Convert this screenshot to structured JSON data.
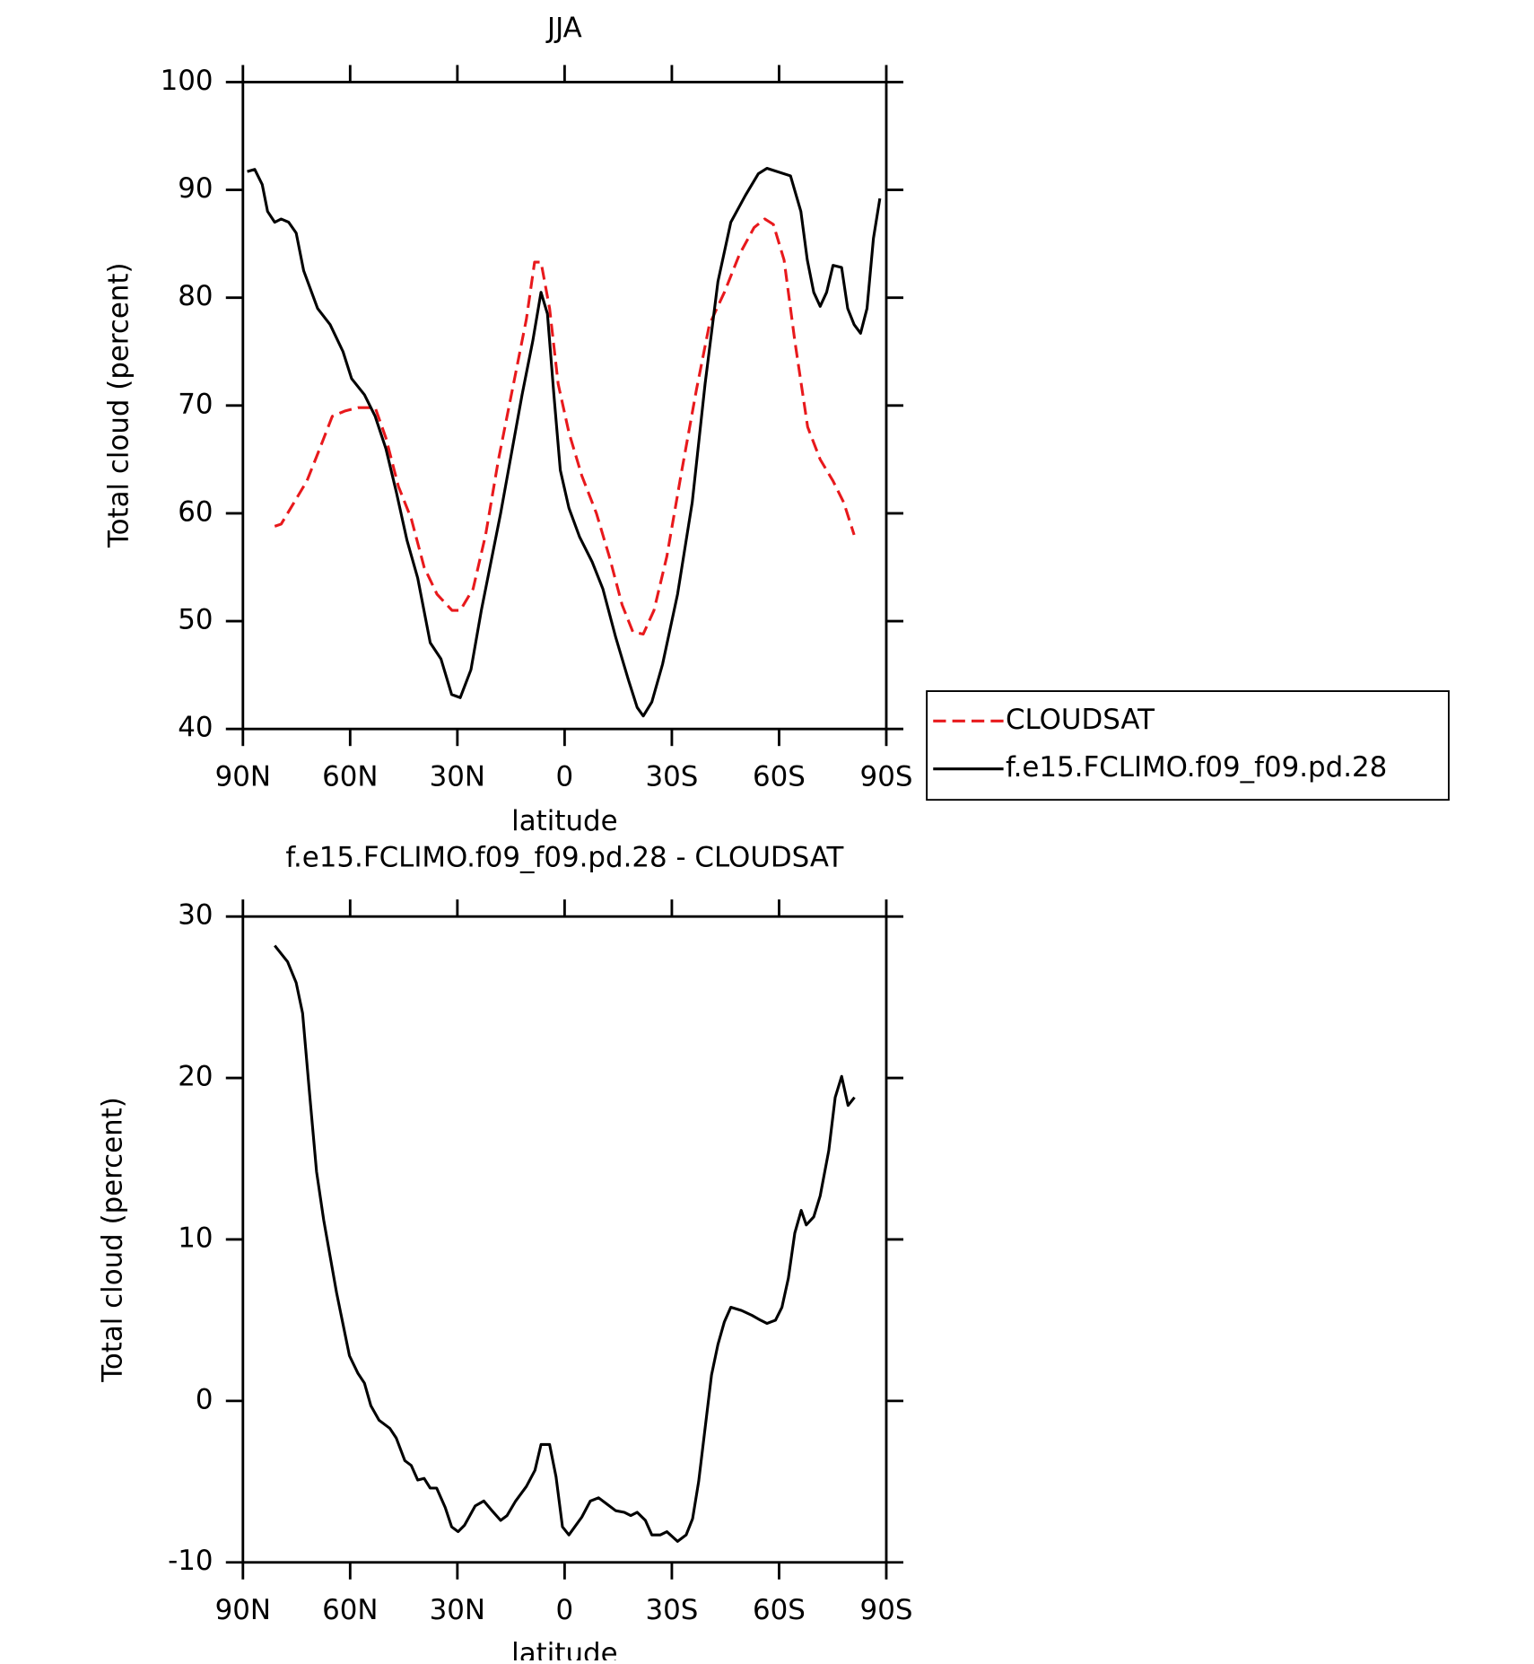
{
  "chart_data": [
    {
      "type": "line",
      "title": "JJA",
      "xlabel": "latitude",
      "ylabel": "Total cloud (percent)",
      "xlim": [
        90,
        -90
      ],
      "xticks": [
        {
          "value": 90,
          "label": "90N"
        },
        {
          "value": 60,
          "label": "60N"
        },
        {
          "value": 30,
          "label": "30N"
        },
        0,
        {
          "value": -30,
          "label": "30S"
        },
        {
          "value": -60,
          "label": "60S"
        },
        {
          "value": -90,
          "label": "90S"
        }
      ],
      "ylim": [
        40,
        100
      ],
      "yticks": [
        40,
        50,
        60,
        70,
        80,
        90,
        100
      ],
      "legend": "right",
      "series": [
        {
          "name": "CLOUDSAT",
          "color": "#e8191c",
          "linestyle": "dashed",
          "x": [
            81.1,
            79.3,
            75.7,
            72.1,
            68.5,
            65,
            61.4,
            57.8,
            53,
            50,
            46.5,
            42.9,
            39.3,
            35.7,
            31.5,
            29.2,
            25.6,
            22.1,
            18.5,
            14.3,
            10.7,
            8.4,
            6.6,
            4.2,
            1.8,
            -1.2,
            -4.8,
            -8.9,
            -12.5,
            -16.1,
            -19.1,
            -22,
            -25,
            -28.6,
            -32.8,
            -36.9,
            -40.5,
            -44.7,
            -48.9,
            -53,
            -56,
            -58.4,
            -61.4,
            -64.4,
            -68,
            -71.5,
            -75.1,
            -78.1,
            -81
          ],
          "values": [
            58.8,
            59,
            61,
            63,
            66,
            69,
            69.5,
            69.8,
            69.8,
            67,
            62.5,
            59.5,
            55,
            52.5,
            51,
            51,
            53,
            58,
            65,
            72,
            78,
            83.3,
            83.3,
            79,
            72,
            67.5,
            63.5,
            60,
            56,
            51.5,
            49,
            48.8,
            51,
            56,
            64,
            71.5,
            77.5,
            80.5,
            84,
            86.5,
            87.3,
            86.8,
            83.5,
            76,
            68,
            65,
            63,
            61,
            58
          ]
        },
        {
          "name": "f.e15.FCLIMO.f09_f09.pd.28",
          "color": "#000000",
          "linestyle": "solid",
          "x": [
            88.8,
            86.7,
            84.6,
            83.1,
            81.1,
            79.3,
            77.2,
            75.1,
            73,
            69.1,
            65.6,
            62,
            59.6,
            56,
            53,
            50,
            47.1,
            44.1,
            41.1,
            37.6,
            34.6,
            31.6,
            29.2,
            26.2,
            23.3,
            17.9,
            11.9,
            8.9,
            6.6,
            4.8,
            3,
            1.2,
            -1.2,
            -4.2,
            -7.7,
            -10.7,
            -14.3,
            -17.9,
            -20.3,
            -22,
            -24.4,
            -27.4,
            -31.6,
            -35.7,
            -39.3,
            -42.9,
            -46.5,
            -50.6,
            -54.2,
            -56.6,
            -63.2,
            -66.1,
            -67.9,
            -69.7,
            -71.5,
            -73.3,
            -75.1,
            -77.5,
            -79.2,
            -81,
            -82.8,
            -84.6,
            -86.4,
            -88.2
          ],
          "values": [
            91.7,
            91.9,
            90.5,
            88,
            87,
            87.3,
            87,
            86,
            82.5,
            79,
            77.5,
            75,
            72.5,
            71,
            69,
            66,
            62,
            57.5,
            54,
            48,
            46.5,
            43.2,
            42.9,
            45.5,
            51,
            60,
            71,
            76,
            80.5,
            78.5,
            71,
            64,
            60.5,
            57.8,
            55.5,
            53,
            48.5,
            44.5,
            42,
            41.2,
            42.5,
            46,
            52.5,
            61,
            72,
            81.5,
            87,
            89.5,
            91.5,
            92,
            91.3,
            88,
            83.5,
            80.5,
            79.2,
            80.5,
            83,
            82.8,
            79,
            77.5,
            76.7,
            79,
            85.5,
            89.2
          ]
        }
      ]
    },
    {
      "type": "line",
      "title": "f.e15.FCLIMO.f09_f09.pd.28 - CLOUDSAT",
      "xlabel": "latitude",
      "ylabel": "Total cloud (percent)",
      "xlim": [
        90,
        -90
      ],
      "xticks": [
        {
          "value": 90,
          "label": "90N"
        },
        {
          "value": 60,
          "label": "60N"
        },
        {
          "value": 30,
          "label": "30N"
        },
        0,
        {
          "value": -30,
          "label": "30S"
        },
        {
          "value": -60,
          "label": "60S"
        },
        {
          "value": -90,
          "label": "90S"
        }
      ],
      "ylim": [
        -10,
        30
      ],
      "yticks": [
        -10,
        0,
        10,
        20,
        30
      ],
      "series": [
        {
          "color": "#000000",
          "linestyle": "solid",
          "x": [
            81.1,
            77.5,
            75.1,
            73.3,
            71.5,
            69.4,
            67.4,
            63.8,
            60.2,
            57.8,
            56,
            54.2,
            51.9,
            48.9,
            47.1,
            44.7,
            42.9,
            41.1,
            39.3,
            37.6,
            35.8,
            33.4,
            31.6,
            29.8,
            28,
            25,
            22.6,
            20.3,
            17.9,
            16.1,
            13.7,
            10.7,
            8.3,
            6.6,
            4.2,
            2.4,
            0.6,
            -1.2,
            -4.8,
            -7.2,
            -9.5,
            -11.9,
            -14.3,
            -16.7,
            -18.5,
            -20.3,
            -22.6,
            -24.4,
            -26.8,
            -28.6,
            -31.6,
            -34,
            -35.8,
            -37.5,
            -39.3,
            -41.1,
            -42.9,
            -44.7,
            -46.5,
            -49.5,
            -52.4,
            -54.8,
            -56.6,
            -59,
            -60.8,
            -62.6,
            -64.4,
            -66.2,
            -67.6,
            -69.7,
            -71.5,
            -73.9,
            -75.7,
            -77.5,
            -79.3,
            -81.1
          ],
          "values": [
            28.2,
            27.2,
            25.9,
            24,
            19.4,
            14.2,
            11.2,
            6.7,
            2.8,
            1.7,
            1.1,
            -0.3,
            -1.2,
            -1.7,
            -2.3,
            -3.7,
            -4,
            -4.9,
            -4.8,
            -5.4,
            -5.4,
            -6.6,
            -7.8,
            -8.1,
            -7.7,
            -6.5,
            -6.2,
            -6.8,
            -7.4,
            -7.1,
            -6.2,
            -5.3,
            -4.3,
            -2.7,
            -2.7,
            -4.7,
            -7.8,
            -8.3,
            -7.2,
            -6.2,
            -6,
            -6.4,
            -6.8,
            -6.9,
            -7.1,
            -6.9,
            -7.4,
            -8.3,
            -8.3,
            -8.1,
            -8.7,
            -8.3,
            -7.3,
            -5,
            -1.7,
            1.6,
            3.5,
            4.9,
            5.8,
            5.6,
            5.3,
            5,
            4.8,
            5,
            5.8,
            7.6,
            10.4,
            11.8,
            10.9,
            11.4,
            12.7,
            15.5,
            18.8,
            20.1,
            18.3,
            18.8
          ]
        }
      ]
    }
  ]
}
